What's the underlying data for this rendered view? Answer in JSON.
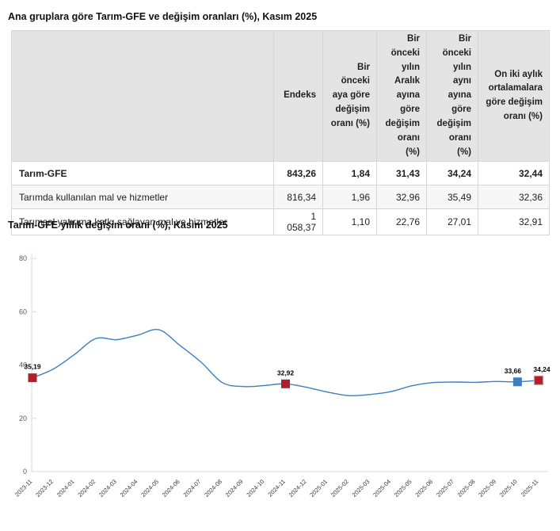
{
  "table_section": {
    "title": "Ana gruplara göre Tarım-GFE ve değişim oranları (%), Kasım 2025",
    "columns": [
      "Endeks",
      "Bir önceki aya göre değişim oranı (%)",
      "Bir önceki yılın Aralık ayına göre değişim oranı (%)",
      "Bir önceki yılın aynı ayına göre değişim oranı (%)",
      "On iki aylık ortalamalara göre değişim oranı (%)"
    ],
    "rows": [
      {
        "label": "Tarım-GFE",
        "values": [
          "843,26",
          "1,84",
          "31,43",
          "34,24",
          "32,44"
        ]
      },
      {
        "label": "Tarımda kullanılan mal ve hizmetler",
        "values": [
          "816,34",
          "1,96",
          "32,96",
          "35,49",
          "32,36"
        ]
      },
      {
        "label": "Tarımsal yatırıma katkı sağlayan mal ve hizmetler",
        "values": [
          "1 058,37",
          "1,10",
          "22,76",
          "27,01",
          "32,91"
        ]
      }
    ]
  },
  "chart_data": {
    "type": "line",
    "title": "Tarım-GFE yıllık değişim oranı (%), Kasım 2025",
    "x": [
      "2023-11",
      "2023-12",
      "2024-01",
      "2024-02",
      "2024-03",
      "2024-04",
      "2024-05",
      "2024-06",
      "2024-07",
      "2024-08",
      "2024-09",
      "2024-10",
      "2024-11",
      "2024-12",
      "2025-01",
      "2025-02",
      "2025-03",
      "2025-04",
      "2025-05",
      "2025-06",
      "2025-07",
      "2025-08",
      "2025-09",
      "2025-10",
      "2025-11"
    ],
    "series": [
      {
        "name": "Tarım-GFE yıllık değişim oranı (%)",
        "values": [
          35.19,
          38.5,
          44.0,
          49.9,
          49.5,
          51.2,
          53.2,
          47.3,
          41.0,
          33.4,
          31.9,
          32.3,
          32.92,
          31.6,
          29.8,
          28.5,
          28.9,
          30.0,
          32.2,
          33.4,
          33.6,
          33.5,
          33.8,
          33.66,
          34.24
        ]
      }
    ],
    "ylim": [
      0,
      80
    ],
    "yticks": [
      0,
      20,
      40,
      60,
      80
    ],
    "grid": false,
    "legend": "none",
    "line_color": "#3e7fc1",
    "annotated_points": [
      {
        "x": "2023-11",
        "value": 35.19,
        "label": "35,19",
        "marker_color": "#b11f2b",
        "highlight": false
      },
      {
        "x": "2024-11",
        "value": 32.92,
        "label": "32,92",
        "marker_color": "#b11f2b",
        "highlight": false
      },
      {
        "x": "2025-10",
        "value": 33.66,
        "label": "33,66",
        "marker_color": "#3e7fc1",
        "highlight": false
      },
      {
        "x": "2025-11",
        "value": 34.24,
        "label": "34,24",
        "marker_color": "#b11f2b",
        "highlight": true
      }
    ]
  },
  "colors": {
    "line": "#3e7fc1",
    "marker_red": "#b11f2b",
    "marker_blue": "#3e7fc1",
    "marker_highlight_border": "#dd8f96",
    "header_bg": "#e4e4e4",
    "table_border": "#d6d6d6",
    "axis": "#d9d9d9",
    "tick_text": "#595959",
    "xlabel_text": "#3a3a3a"
  }
}
